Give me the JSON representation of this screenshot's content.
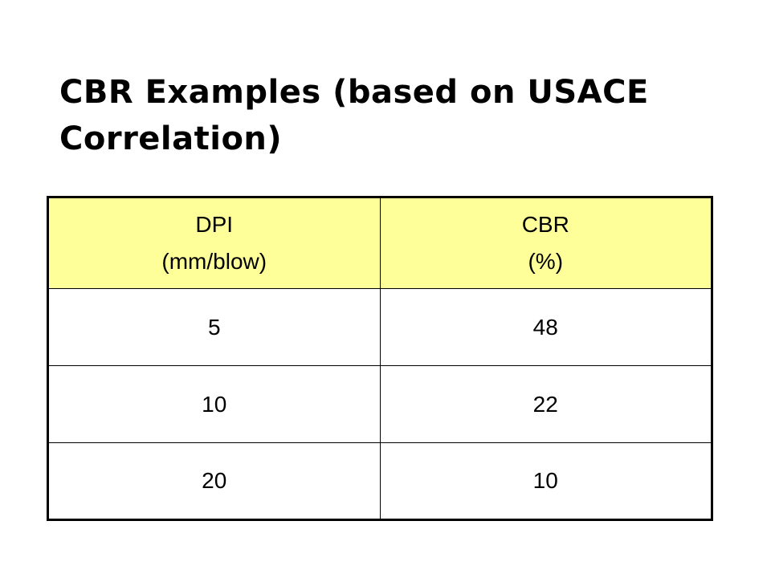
{
  "slide": {
    "title": "CBR Examples (based on USACE Correlation)"
  },
  "table": {
    "header_color": "#ffff99",
    "columns": [
      {
        "name": "DPI",
        "unit": "(mm/blow)"
      },
      {
        "name": "CBR",
        "unit": "(%)"
      }
    ],
    "rows": [
      {
        "dpi": "5",
        "cbr": "48"
      },
      {
        "dpi": "10",
        "cbr": "22"
      },
      {
        "dpi": "20",
        "cbr": "10"
      }
    ]
  }
}
